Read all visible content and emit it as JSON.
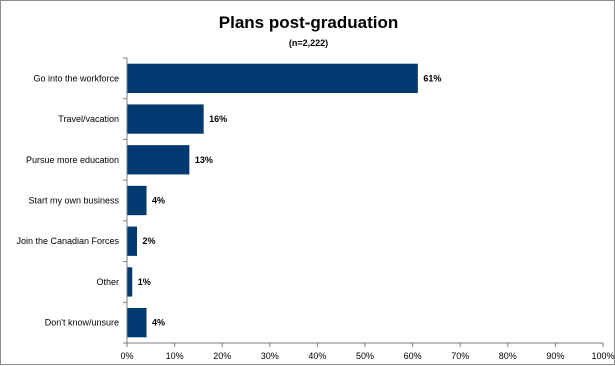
{
  "chart_data": {
    "type": "bar",
    "orientation": "horizontal",
    "title": "Plans post-graduation",
    "subtitle": "(n=2,222)",
    "categories": [
      "Go into the workforce",
      "Travel/vacation",
      "Pursue more education",
      "Start my own business",
      "Join the Canadian Forces",
      "Other",
      "Don't know/unsure"
    ],
    "values": [
      61,
      16,
      13,
      4,
      2,
      1,
      4
    ],
    "data_labels": [
      "61%",
      "16%",
      "13%",
      "4%",
      "2%",
      "1%",
      "4%"
    ],
    "xlim": [
      0,
      100
    ],
    "xticks": [
      "0%",
      "10%",
      "20%",
      "30%",
      "40%",
      "50%",
      "60%",
      "70%",
      "80%",
      "90%",
      "100%"
    ],
    "grid": false,
    "legend": "none",
    "bar_color": "#003a70"
  }
}
